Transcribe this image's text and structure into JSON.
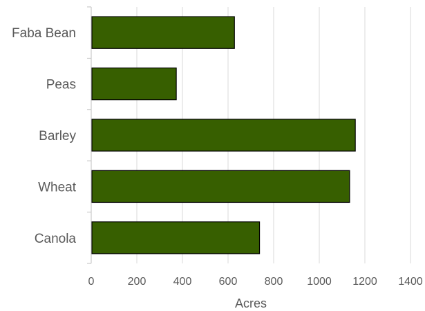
{
  "chart_data": {
    "type": "bar",
    "orientation": "horizontal",
    "categories": [
      "Faba Bean",
      "Peas",
      "Barley",
      "Wheat",
      "Canola"
    ],
    "values": [
      625,
      370,
      1155,
      1130,
      735
    ],
    "xlabel": "Acres",
    "ylabel": "",
    "xlim": [
      0,
      1400
    ],
    "xticks": [
      "0",
      "200",
      "400",
      "600",
      "800",
      "1000",
      "1200",
      "1400"
    ],
    "grid": true,
    "legend": "none",
    "colors": {
      "bar_fill": "#375f00",
      "bar_stroke": "#000000",
      "gridline": "#d9d9d9",
      "axis": "#bfbfbf",
      "text": "#595959"
    }
  }
}
